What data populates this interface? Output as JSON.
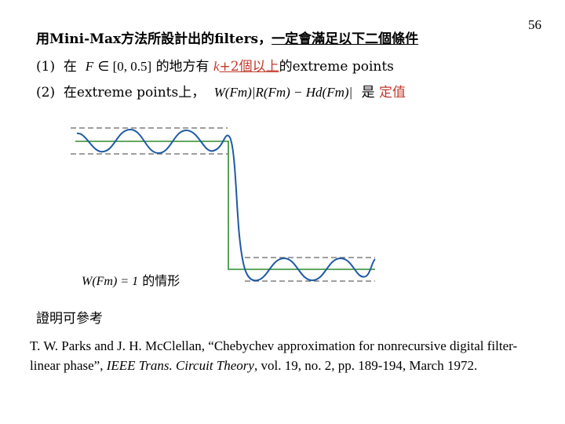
{
  "page_number": "56",
  "title": {
    "prefix": "用Mini-Max方法所設計出的filters，",
    "underlined": "一定會滿足以下二個條件"
  },
  "condition1": {
    "label": "(1)",
    "text_a": "在",
    "var_f": "F",
    "text_b": "∈ [0, 0.5]",
    "text_c": "的地方有",
    "k": "k",
    "red_text": "+2個以上",
    "text_d": "的extreme points"
  },
  "condition2": {
    "label": "(2)",
    "text_a": "在extreme points上，",
    "formula": "W(Fm)|R(Fm) − Hd(Fm)|",
    "text_b": "是",
    "red_text": "定值"
  },
  "chart_note": {
    "formula": "W(Fm) = 1",
    "text": "的情形"
  },
  "proof_label": "證明可參考",
  "reference": {
    "part1": "T. W. Parks and J. H. McClellan, “Chebychev approximation for nonrecursive digital filter-linear phase”,",
    "journal": "IEEE Trans. Circuit Theory",
    "part2": ", vol. 19, no. 2, pp. 189-194, March 1972."
  },
  "colors": {
    "ideal_response": "#2e8b2e",
    "filter_response": "#1f5aa6",
    "tolerance_lines": "#666666",
    "emphasis": "#c0392b"
  }
}
